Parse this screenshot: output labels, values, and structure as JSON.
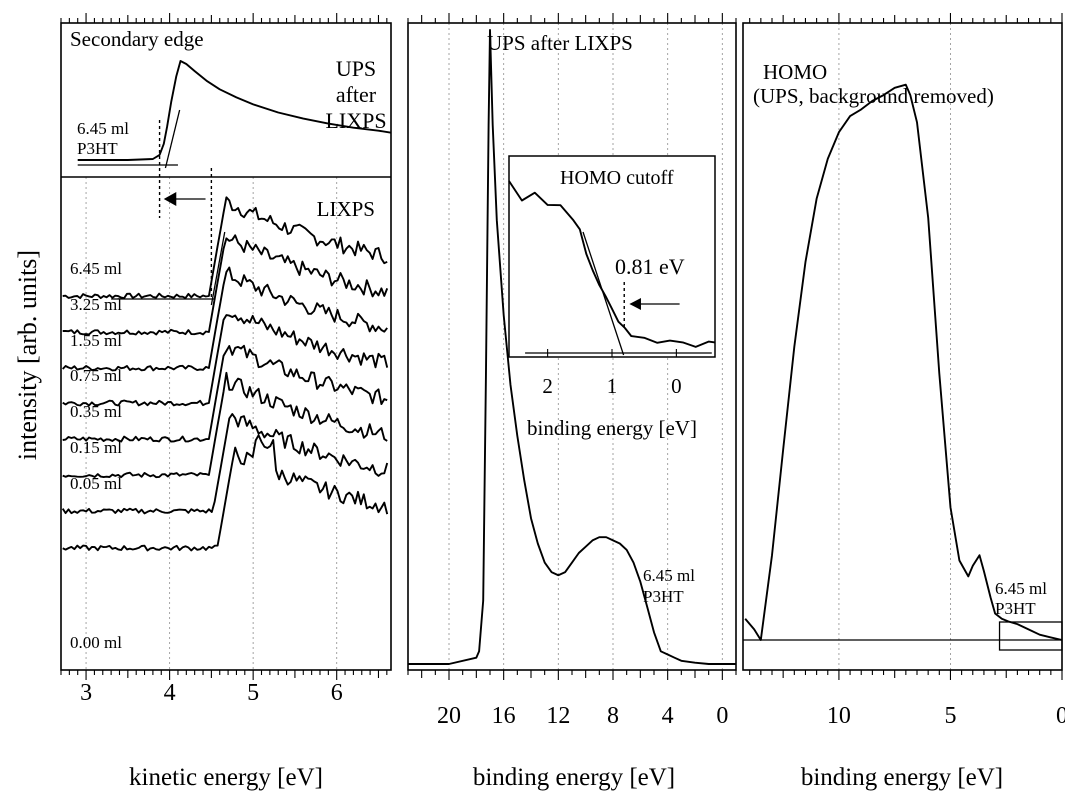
{
  "figure": {
    "ylabel": "intensity [arb. units]"
  },
  "chart_data": [
    {
      "type": "line",
      "panel": "left-top",
      "title": "Secondary edge",
      "label_lines": [
        "UPS",
        "after",
        "LIXPS"
      ],
      "sample_lines": [
        "6.45 ml",
        "P3HT"
      ],
      "xlabel": "kinetic energy [eV]",
      "xlim": [
        2.7,
        6.65
      ],
      "xticks": [
        3,
        4,
        5,
        6
      ],
      "series": [
        {
          "x": [
            2.9,
            3.5,
            3.8,
            3.88,
            3.93,
            3.97,
            4.02,
            4.08,
            4.13,
            4.2,
            4.3,
            4.45,
            4.6,
            4.8,
            5.0,
            5.3,
            5.6,
            5.9,
            6.2,
            6.5,
            6.65
          ],
          "y": [
            0.02,
            0.02,
            0.03,
            0.07,
            0.18,
            0.35,
            0.6,
            0.85,
            1.0,
            0.97,
            0.9,
            0.8,
            0.72,
            0.64,
            0.57,
            0.49,
            0.43,
            0.38,
            0.34,
            0.31,
            0.29
          ]
        }
      ]
    },
    {
      "type": "line",
      "panel": "left-bottom",
      "title": "LIXPS",
      "xlabel": "kinetic energy [eV]",
      "ylabel": "intensity [arb. units]",
      "xlim": [
        2.7,
        6.65
      ],
      "xticks": [
        3,
        4,
        5,
        6
      ],
      "series": [
        {
          "name": "6.45 ml"
        },
        {
          "name": "3.25 ml"
        },
        {
          "name": "1.55 ml"
        },
        {
          "name": "0.75 ml"
        },
        {
          "name": "0.35 ml"
        },
        {
          "name": "0.15 ml"
        },
        {
          "name": "0.05 ml"
        },
        {
          "name": "0.00 ml"
        }
      ]
    },
    {
      "type": "line",
      "panel": "middle",
      "title": "UPS after LIXPS",
      "sample_lines": [
        "6.45 ml",
        "P3HT"
      ],
      "xlabel": "binding energy [eV]",
      "xlim": [
        23,
        -1
      ],
      "xticks": [
        20,
        16,
        12,
        8,
        4,
        0
      ],
      "series": [
        {
          "x": [
            23,
            20,
            18,
            17.8,
            17.5,
            17.3,
            17.1,
            17.0,
            16.8,
            16.5,
            16,
            15.5,
            15,
            14.5,
            14,
            13.5,
            13,
            12.5,
            12,
            11.5,
            11,
            10.5,
            10,
            9.5,
            9,
            8.5,
            8,
            7.5,
            7,
            6.5,
            6,
            5.5,
            5,
            4.5,
            4,
            3.5,
            3,
            2,
            1,
            0,
            -1
          ],
          "y": [
            0.0,
            0.0,
            0.01,
            0.02,
            0.1,
            0.45,
            0.85,
            1.0,
            0.85,
            0.7,
            0.55,
            0.44,
            0.36,
            0.29,
            0.23,
            0.19,
            0.16,
            0.145,
            0.14,
            0.145,
            0.16,
            0.175,
            0.185,
            0.195,
            0.2,
            0.2,
            0.195,
            0.19,
            0.18,
            0.16,
            0.13,
            0.09,
            0.05,
            0.02,
            0.015,
            0.01,
            0.005,
            0.002,
            0.0,
            0.0,
            0.0
          ]
        }
      ],
      "inset": {
        "title": "HOMO cutoff",
        "xlabel": "binding energy [eV]",
        "xlim": [
          2.6,
          -0.6
        ],
        "xticks": [
          2,
          1,
          0
        ],
        "annotation": "0.81 eV",
        "series": [
          {
            "x": [
              2.6,
              2.4,
              2.2,
              2.0,
              1.8,
              1.6,
              1.5,
              1.4,
              1.3,
              1.2,
              1.1,
              1.0,
              0.9,
              0.8,
              0.7,
              0.5,
              0.3,
              0.1,
              -0.1,
              -0.3,
              -0.5,
              -0.6
            ],
            "y": [
              0.95,
              0.82,
              0.88,
              0.8,
              0.82,
              0.72,
              0.68,
              0.55,
              0.45,
              0.38,
              0.3,
              0.24,
              0.18,
              0.13,
              0.1,
              0.08,
              0.06,
              0.05,
              0.04,
              0.04,
              0.05,
              0.06
            ]
          }
        ]
      }
    },
    {
      "type": "line",
      "panel": "right",
      "title_lines": [
        "HOMO",
        "(UPS, background removed)"
      ],
      "sample_lines": [
        "6.45 ml",
        "P3HT"
      ],
      "xlabel": "binding energy [eV]",
      "xlim": [
        14.3,
        0
      ],
      "xticks": [
        10,
        5,
        0
      ],
      "series": [
        {
          "x": [
            14.2,
            13.8,
            13.5,
            13.0,
            12.5,
            12.0,
            11.5,
            11.0,
            10.5,
            10.0,
            9.5,
            9.0,
            8.5,
            8.0,
            7.5,
            7.0,
            6.8,
            6.5,
            6.0,
            5.5,
            5.0,
            4.6,
            4.2,
            4.0,
            3.7,
            3.5,
            3.2,
            3.0,
            2.7,
            2.4,
            2.0,
            1.5,
            1.0,
            0.5,
            0.0
          ],
          "y": [
            0.04,
            0.02,
            0.0,
            0.16,
            0.36,
            0.55,
            0.71,
            0.83,
            0.91,
            0.96,
            0.99,
            1.0,
            1.02,
            1.03,
            1.04,
            1.05,
            1.03,
            0.98,
            0.8,
            0.5,
            0.25,
            0.15,
            0.12,
            0.14,
            0.16,
            0.13,
            0.08,
            0.05,
            0.04,
            0.035,
            0.03,
            0.02,
            0.01,
            0.005,
            0.0
          ]
        }
      ]
    }
  ]
}
